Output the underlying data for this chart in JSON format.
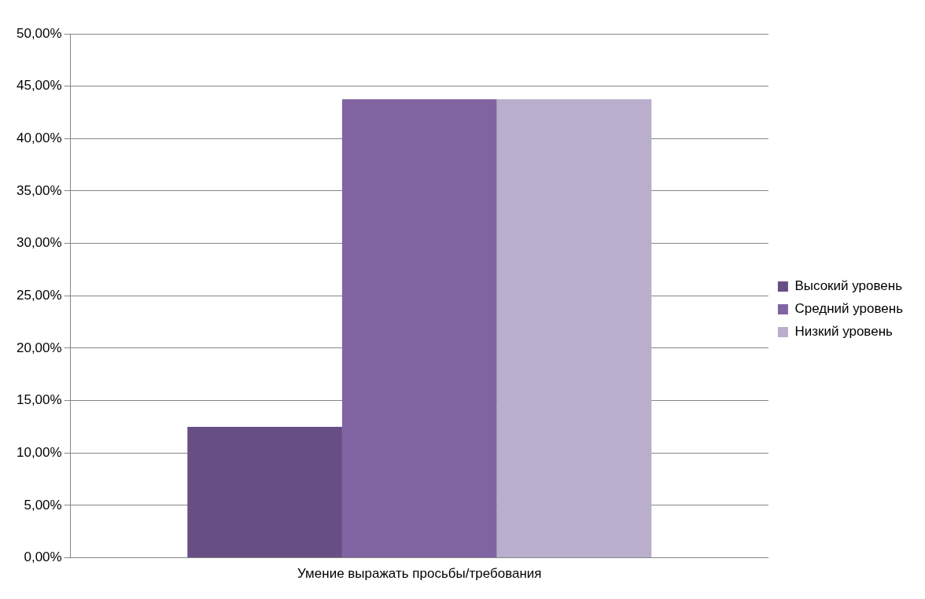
{
  "chart_data": {
    "type": "bar",
    "categories": [
      "Умение выражать просьбы/требования"
    ],
    "series": [
      {
        "name": "Высокий уровень",
        "color": "#674f86",
        "values": [
          12.5
        ]
      },
      {
        "name": "Средний уровень",
        "color": "#8064a2",
        "values": [
          43.75
        ]
      },
      {
        "name": "Низкий уровень",
        "color": "#b9aecb",
        "values": [
          43.75
        ]
      }
    ],
    "ylim": [
      0,
      50
    ],
    "yticks": [
      {
        "value": 0,
        "label": "0,00%"
      },
      {
        "value": 5,
        "label": "5,00%"
      },
      {
        "value": 10,
        "label": "10,00%"
      },
      {
        "value": 15,
        "label": "15,00%"
      },
      {
        "value": 20,
        "label": "20,00%"
      },
      {
        "value": 25,
        "label": "25,00%"
      },
      {
        "value": 30,
        "label": "30,00%"
      },
      {
        "value": 35,
        "label": "35,00%"
      },
      {
        "value": 40,
        "label": "40,00%"
      },
      {
        "value": 45,
        "label": "45,00%"
      },
      {
        "value": 50,
        "label": "50,00%"
      }
    ],
    "grid": "y",
    "legend": "right"
  }
}
